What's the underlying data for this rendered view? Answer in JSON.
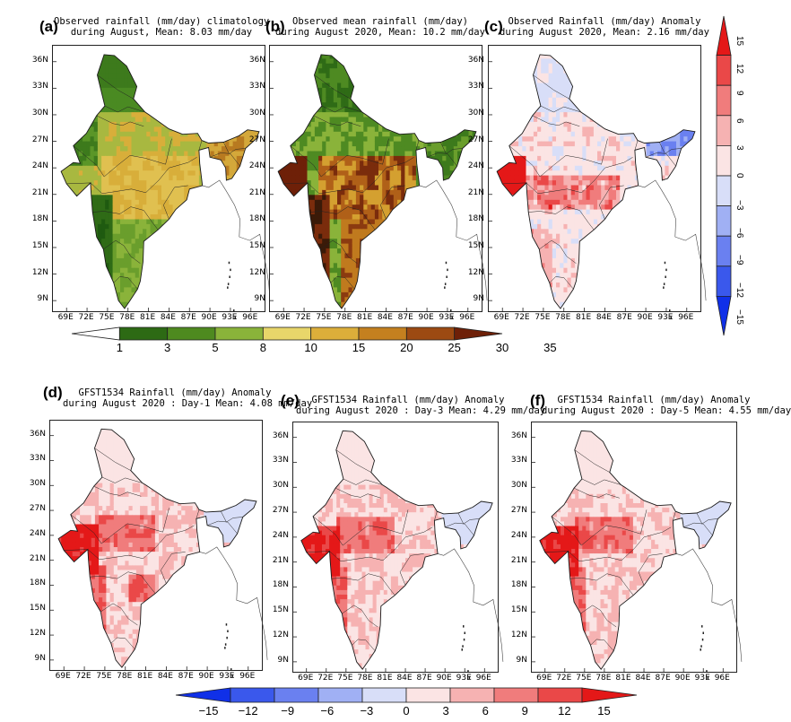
{
  "panels": [
    {
      "id": "a",
      "label": "(a)",
      "title": "Observed rainfall (mm/day) climatology\nduring August, Mean: 8.03 mm/day",
      "scheme": "abs-clim"
    },
    {
      "id": "b",
      "label": "(b)",
      "title": "Observed mean rainfall (mm/day)\nduring August 2020, Mean: 10.2 mm/day",
      "scheme": "abs-2020"
    },
    {
      "id": "c",
      "label": "(c)",
      "title": "Observed Rainfall (mm/day) Anomaly\nduring August 2020, Mean: 2.16 mm/day",
      "scheme": "anom-obs"
    },
    {
      "id": "d",
      "label": "(d)",
      "title": "GFST1534 Rainfall (mm/day) Anomaly\nduring August 2020 : Day-1 Mean: 4.08 mm/day",
      "scheme": "anom-fc"
    },
    {
      "id": "e",
      "label": "(e)",
      "title": "GFST1534 Rainfall (mm/day) Anomaly\nduring August 2020 : Day-3 Mean: 4.29 mm/day",
      "scheme": "anom-fc"
    },
    {
      "id": "f",
      "label": "(f)",
      "title": "GFST1534 Rainfall (mm/day) Anomaly\nduring August 2020 : Day-5 Mean: 4.55 mm/day",
      "scheme": "anom-fc"
    }
  ],
  "lat_ticks": [
    "36N",
    "33N",
    "30N",
    "27N",
    "24N",
    "21N",
    "18N",
    "15N",
    "12N",
    "9N"
  ],
  "lon_ticks": [
    "69E",
    "72E",
    "75E",
    "78E",
    "81E",
    "84E",
    "87E",
    "90E",
    "93E",
    "96E"
  ],
  "colorbar_abs": {
    "labels": [
      "1",
      "3",
      "5",
      "8",
      "10",
      "15",
      "20",
      "25",
      "30",
      "35"
    ],
    "colors": [
      "#ffffff",
      "#2d6a14",
      "#4e8a1f",
      "#8ab33a",
      "#e8d66a",
      "#dcae3a",
      "#c4801f",
      "#9c4a12",
      "#6e2008"
    ]
  },
  "colorbar_anom_vertical": {
    "labels": [
      "15",
      "12",
      "9",
      "6",
      "3",
      "0",
      "−3",
      "−6",
      "−9",
      "−12",
      "−15"
    ]
  },
  "colorbar_anom_bottom": {
    "labels": [
      "−15",
      "−12",
      "−9",
      "−6",
      "−3",
      "0",
      "3",
      "6",
      "9",
      "12",
      "15"
    ],
    "colors": [
      "#1030e8",
      "#3a58ec",
      "#6a80f0",
      "#a0b0f4",
      "#d8def8",
      "#fbe4e4",
      "#f6b2b2",
      "#f07c7c",
      "#ea4848",
      "#e41818"
    ]
  },
  "colors": {
    "land_abs_dark": "#2f6b16",
    "land_abs_mid": "#8ab33a",
    "land_abs_yellow": "#dcb33e",
    "land_abs_brown": "#8b3a10",
    "anom_red": "#e8363a",
    "anom_pink": "#f7c8c8",
    "anom_blue": "#4a5ee8",
    "anom_lightblue": "#c6cff4",
    "boundary": "#1a1a1a"
  }
}
